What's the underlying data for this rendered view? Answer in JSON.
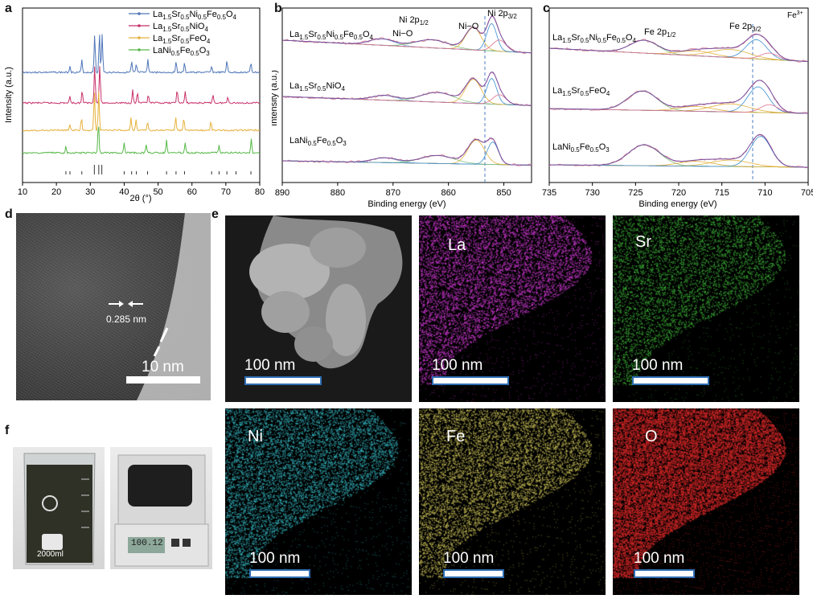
{
  "panels": {
    "a": "a",
    "b": "b",
    "c": "c",
    "d": "d",
    "e": "e",
    "f": "f"
  },
  "chart_data": [
    {
      "type": "line",
      "panel": "a",
      "xlabel": "2θ (°)",
      "ylabel": "Intensity (a.u.)",
      "xlim": [
        10,
        80
      ],
      "xticks": [
        10,
        20,
        30,
        40,
        50,
        60,
        70,
        80
      ],
      "series": [
        {
          "name": "La1.5Sr0.5Ni0.5Fe0.5O4",
          "color": "#4f76b8",
          "peaks": [
            24.0,
            27.5,
            31.3,
            32.7,
            33.5,
            42.2,
            43.6,
            47.0,
            55.3,
            57.8,
            65.8,
            70.3,
            77.4
          ]
        },
        {
          "name": "La1.5Sr0.5NiO4",
          "color": "#c8326a",
          "peaks": [
            24.0,
            27.6,
            31.3,
            32.8,
            42.5,
            43.9,
            47.1,
            55.6,
            58.0,
            66.2,
            70.6
          ]
        },
        {
          "name": "La1.5Sr0.5FeO4",
          "color": "#e6b13c",
          "peaks": [
            24.0,
            27.4,
            31.2,
            32.5,
            42.0,
            43.5,
            46.9,
            55.2,
            57.6,
            65.6
          ]
        },
        {
          "name": "LaNi0.5Fe0.5O3",
          "color": "#57b848",
          "peaks": [
            22.8,
            32.4,
            40.0,
            46.5,
            52.5,
            58.0,
            68.0,
            77.5
          ]
        }
      ]
    },
    {
      "type": "line",
      "panel": "b",
      "xlabel": "Binding energy (eV)",
      "ylabel": "Intensity (a.u.)",
      "xlim": [
        890,
        845
      ],
      "xticks": [
        890,
        880,
        870,
        860,
        850
      ],
      "annotations": [
        "Ni 2p1/2",
        "Ni−O",
        "Ni−O",
        "Ni 2p3/2"
      ],
      "series": [
        {
          "name": "La1.5Sr0.5Ni0.5Fe0.5O4"
        },
        {
          "name": "La1.5Sr0.5NiO4"
        },
        {
          "name": "LaNi0.5Fe0.5O3"
        }
      ]
    },
    {
      "type": "line",
      "panel": "c",
      "xlabel": "Binding energy (eV)",
      "xlim": [
        735,
        705
      ],
      "xticks": [
        735,
        730,
        725,
        720,
        715,
        710,
        705
      ],
      "annotations": [
        "Fe 2p1/2",
        "Fe 2p3/2",
        "Fe3+"
      ],
      "series": [
        {
          "name": "La1.5Sr0.5Ni0.5Fe0.5O4"
        },
        {
          "name": "La1.5Sr0.5FeO4"
        },
        {
          "name": "LaNi0.5Fe0.5O3"
        }
      ]
    }
  ],
  "panel_d": {
    "spacing_label": "0.285 nm",
    "scalebar": "10 nm"
  },
  "panel_e": {
    "maps": [
      {
        "element": "",
        "color": "#c9c9c9",
        "scalebar": "100 nm"
      },
      {
        "element": "La",
        "color": "#d43bd8",
        "scalebar": "100 nm"
      },
      {
        "element": "Sr",
        "color": "#3fb83a",
        "scalebar": "100 nm"
      },
      {
        "element": "Ni",
        "color": "#36b9c4",
        "scalebar": "100 nm"
      },
      {
        "element": "Fe",
        "color": "#cfc55a",
        "scalebar": "100 nm"
      },
      {
        "element": "O",
        "color": "#e12a2a",
        "scalebar": "100 nm"
      }
    ]
  },
  "panel_f": {
    "beaker_volume": "2000ml",
    "balance_reading": "100.12"
  }
}
